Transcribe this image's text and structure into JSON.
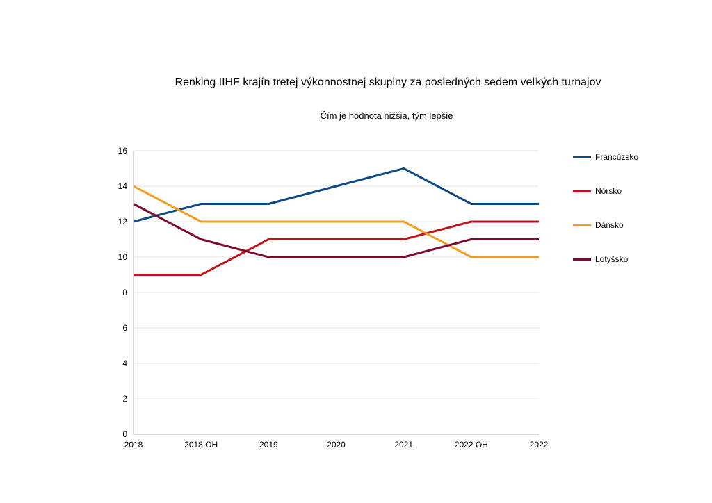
{
  "chart_data": {
    "type": "line",
    "title": "Renking IIHF krajín tretej výkonnostnej skupiny za posledných sedem veľkých turnajov",
    "subtitle": "Čím je hodnota nižšia, tým lepšie",
    "categories": [
      "2018",
      "2018 OH",
      "2019",
      "2020",
      "2021",
      "2022 OH",
      "2022"
    ],
    "ylim": [
      0,
      16
    ],
    "yticks": [
      0,
      2,
      4,
      6,
      8,
      10,
      12,
      14,
      16
    ],
    "grid": true,
    "legend_position": "right",
    "series": [
      {
        "name": "Francúzsko",
        "color": "#0e4a84",
        "values": [
          12,
          13,
          13,
          null,
          15,
          13,
          13
        ]
      },
      {
        "name": "Nórsko",
        "color": "#c0141b",
        "values": [
          9,
          9,
          11,
          null,
          11,
          12,
          12
        ]
      },
      {
        "name": "Dánsko",
        "color": "#f39c22",
        "values": [
          14,
          12,
          12,
          null,
          12,
          10,
          10
        ]
      },
      {
        "name": "Lotyšsko",
        "color": "#7d0b2c",
        "values": [
          13,
          11,
          10,
          null,
          10,
          11,
          11
        ]
      }
    ]
  }
}
